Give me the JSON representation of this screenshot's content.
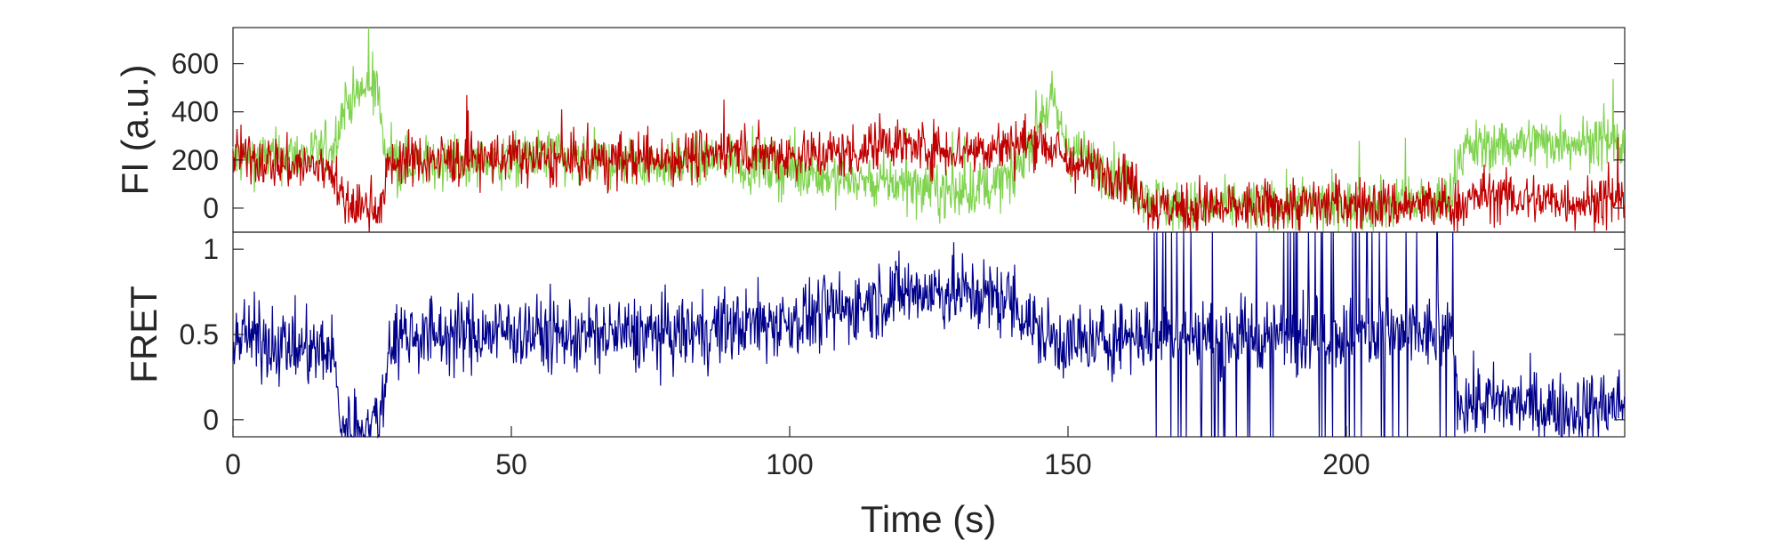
{
  "chart_data": [
    {
      "type": "line",
      "ylabel": "FI (a.u.)",
      "xlim": [
        0,
        250
      ],
      "ylim": [
        -100,
        750
      ],
      "yticks": [
        0,
        200,
        400,
        600
      ],
      "ytick_labels": [
        "0",
        "200",
        "400",
        "600"
      ],
      "grid": false,
      "series": [
        {
          "color": "#7fd34e",
          "x": [
            0,
            5,
            10,
            15,
            18,
            20,
            23,
            26,
            27,
            30,
            40,
            50,
            58,
            60,
            70,
            80,
            90,
            100,
            110,
            120,
            130,
            140,
            145,
            147,
            150,
            155,
            160,
            165,
            170,
            180,
            190,
            200,
            210,
            219,
            220,
            222,
            230,
            240,
            250
          ],
          "y": [
            200,
            210,
            220,
            230,
            250,
            430,
            480,
            520,
            240,
            190,
            190,
            190,
            230,
            190,
            190,
            190,
            200,
            150,
            120,
            100,
            60,
            120,
            380,
            440,
            250,
            180,
            130,
            40,
            0,
            10,
            10,
            10,
            20,
            40,
            230,
            250,
            270,
            280,
            260
          ]
        },
        {
          "color": "#c00000",
          "x": [
            0,
            5,
            10,
            15,
            18,
            19,
            20,
            22,
            25,
            27,
            28,
            30,
            40,
            50,
            60,
            70,
            80,
            90,
            100,
            110,
            115,
            117,
            120,
            130,
            140,
            145,
            150,
            155,
            160,
            165,
            170,
            180,
            190,
            200,
            210,
            220,
            225,
            230,
            240,
            250
          ],
          "y": [
            220,
            200,
            180,
            170,
            170,
            50,
            20,
            0,
            10,
            30,
            180,
            200,
            200,
            210,
            190,
            200,
            210,
            240,
            220,
            230,
            250,
            300,
            260,
            240,
            260,
            290,
            190,
            160,
            140,
            0,
            0,
            0,
            10,
            20,
            10,
            10,
            60,
            40,
            30,
            20
          ]
        }
      ]
    },
    {
      "type": "line",
      "xlabel": "Time (s)",
      "ylabel": "FRET",
      "xlim": [
        0,
        250
      ],
      "ylim": [
        -0.1,
        1.1
      ],
      "xticks": [
        0,
        50,
        100,
        150,
        200
      ],
      "xtick_labels": [
        "0",
        "50",
        "100",
        "150",
        "200"
      ],
      "yticks": [
        0,
        0.5,
        1
      ],
      "ytick_labels": [
        "0",
        "0.5",
        "1"
      ],
      "grid": false,
      "series": [
        {
          "color": "#00008b",
          "x": [
            0,
            5,
            10,
            15,
            18,
            19,
            20,
            23,
            26,
            27,
            28,
            30,
            40,
            50,
            60,
            70,
            80,
            90,
            100,
            110,
            120,
            130,
            140,
            145,
            150,
            155,
            160,
            165,
            170,
            180,
            190,
            200,
            210,
            219,
            220,
            222,
            230,
            240,
            250
          ],
          "y": [
            0.5,
            0.47,
            0.43,
            0.4,
            0.4,
            0.05,
            -0.05,
            -0.05,
            0.0,
            0.1,
            0.45,
            0.5,
            0.5,
            0.52,
            0.49,
            0.5,
            0.5,
            0.55,
            0.58,
            0.65,
            0.75,
            0.75,
            0.7,
            0.5,
            0.45,
            0.45,
            0.5,
            0.5,
            0.5,
            0.5,
            0.5,
            0.5,
            0.5,
            0.5,
            0.12,
            0.1,
            0.1,
            0.05,
            0.1
          ]
        }
      ]
    }
  ]
}
